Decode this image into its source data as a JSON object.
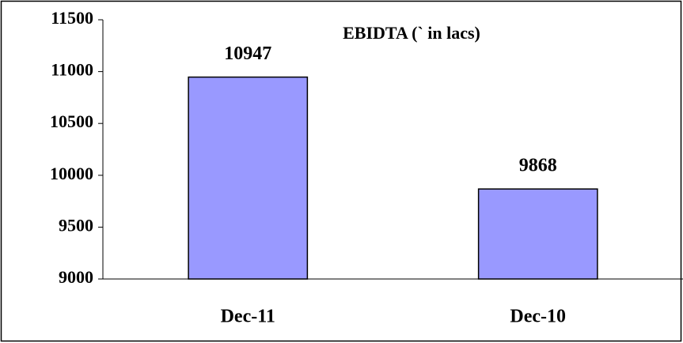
{
  "chart_data": {
    "type": "bar",
    "title": "EBIDTA (` in lacs)",
    "categories": [
      "Dec-11",
      "Dec-10"
    ],
    "values": [
      10947,
      9868
    ],
    "color": "#9999ff",
    "ylim": [
      9000,
      11500
    ],
    "yticks": [
      9000,
      9500,
      10000,
      10500,
      11000,
      11500
    ]
  }
}
